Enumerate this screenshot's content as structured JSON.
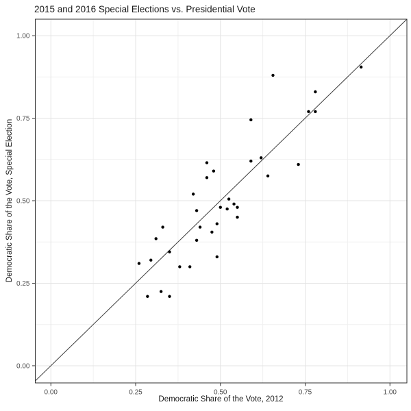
{
  "title": "2015 and 2016 Special Elections vs. Presidential Vote",
  "chart_data": {
    "type": "scatter",
    "title": "2015 and 2016 Special Elections vs. Presidential Vote",
    "xlabel": "Democratic Share of the Vote, 2012",
    "ylabel": "Democratic Share of the Vote, Special Election",
    "x_domain": [
      -0.046,
      1.05
    ],
    "y_domain": [
      -0.052,
      1.05
    ],
    "x_ticks": {
      "values": [
        0,
        0.25,
        0.5,
        0.75,
        1.0
      ],
      "labels": [
        "0.00",
        "0.25",
        "0.50",
        "0.75",
        "1.00"
      ]
    },
    "y_ticks": {
      "values": [
        0,
        0.25,
        0.5,
        0.75,
        1.0
      ],
      "labels": [
        "0.00",
        "0.25",
        "0.50",
        "0.75",
        "1.00"
      ]
    },
    "minor_tick_values": [
      0.125,
      0.375,
      0.625,
      0.875
    ],
    "grid": "major-and-minor",
    "legend": "none",
    "reference_line": {
      "type": "abline",
      "slope": 1,
      "intercept": 0
    },
    "point_radius_px": 2.2,
    "points": [
      [
        0.915,
        0.905
      ],
      [
        0.655,
        0.88
      ],
      [
        0.78,
        0.83
      ],
      [
        0.76,
        0.77
      ],
      [
        0.78,
        0.77
      ],
      [
        0.59,
        0.745
      ],
      [
        0.62,
        0.63
      ],
      [
        0.59,
        0.62
      ],
      [
        0.46,
        0.615
      ],
      [
        0.73,
        0.61
      ],
      [
        0.48,
        0.59
      ],
      [
        0.46,
        0.57
      ],
      [
        0.64,
        0.575
      ],
      [
        0.42,
        0.52
      ],
      [
        0.525,
        0.505
      ],
      [
        0.5,
        0.48
      ],
      [
        0.52,
        0.475
      ],
      [
        0.54,
        0.49
      ],
      [
        0.55,
        0.48
      ],
      [
        0.55,
        0.45
      ],
      [
        0.43,
        0.47
      ],
      [
        0.33,
        0.42
      ],
      [
        0.44,
        0.42
      ],
      [
        0.49,
        0.43
      ],
      [
        0.475,
        0.405
      ],
      [
        0.31,
        0.385
      ],
      [
        0.43,
        0.38
      ],
      [
        0.35,
        0.345
      ],
      [
        0.295,
        0.32
      ],
      [
        0.49,
        0.33
      ],
      [
        0.26,
        0.31
      ],
      [
        0.38,
        0.3
      ],
      [
        0.41,
        0.3
      ],
      [
        0.325,
        0.225
      ],
      [
        0.285,
        0.21
      ],
      [
        0.35,
        0.21
      ]
    ],
    "colors": {
      "point": "#000000",
      "reference_line": "#3d3d3d",
      "grid_major": "#e3e3e3",
      "grid_minor": "#f0f0f0",
      "panel_border": "#2f2f2f",
      "tick_mark": "#333333",
      "axis_text": "#4d4d4d",
      "title_text": "#1a1a1a",
      "background": "#ffffff"
    }
  }
}
